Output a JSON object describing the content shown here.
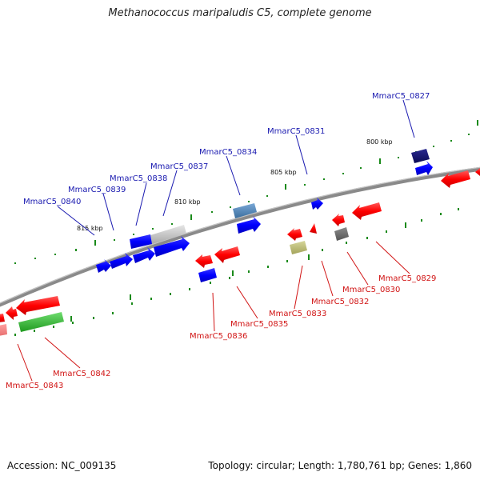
{
  "title": "Methanococcus maripaludis C5, complete genome",
  "footer": {
    "accession": "Accession: NC_009135",
    "summary": "Topology: circular; Length: 1,780,761 bp; Genes: 1,860"
  },
  "ticks": [
    "800 kbp",
    "805 kbp",
    "810 kbp",
    "815 kbp"
  ],
  "forward_labels": [
    "MmarC5_0827",
    "MmarC5_0831",
    "MmarC5_0834",
    "MmarC5_0837",
    "MmarC5_0838",
    "MmarC5_0839",
    "MmarC5_0840"
  ],
  "reverse_labels": [
    "MmarC5_0829",
    "MmarC5_0830",
    "MmarC5_0832",
    "MmarC5_0833",
    "MmarC5_0835",
    "MmarC5_0836",
    "MmarC5_0842",
    "MmarC5_0843"
  ],
  "colors": {
    "forward_label": "#1a1ab0",
    "reverse_label": "#d11414",
    "backbone": "#808080",
    "tick_mark": "#1a8a1a"
  }
}
